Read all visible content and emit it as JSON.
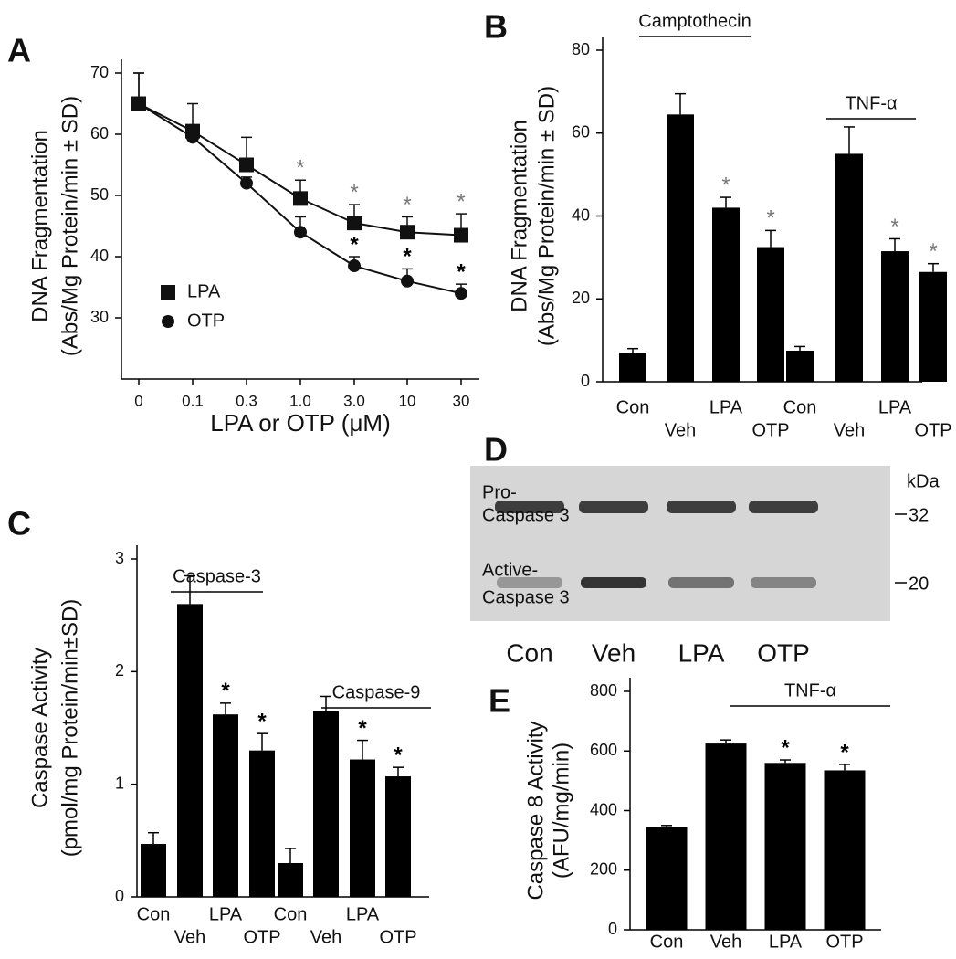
{
  "chart_data": [
    {
      "type": "line",
      "label": "A",
      "x_label": "LPA or OTP (μM)",
      "y_label": [
        "DNA Fragmentation",
        "(Abs/Mg Protein/min ± SD)"
      ],
      "categories": [
        "0",
        "0.1",
        "0.3",
        "1.0",
        "3.0",
        "10",
        "30"
      ],
      "ylim": [
        20,
        70
      ],
      "yticks": [
        30,
        40,
        50,
        60,
        70
      ],
      "series": [
        {
          "name": "LPA",
          "marker": "square",
          "color": "#111111",
          "values": [
            65,
            60.5,
            55,
            49.5,
            45.5,
            44,
            43.5
          ],
          "errors": [
            5,
            4.5,
            4.5,
            3,
            3,
            2.5,
            3.5
          ],
          "significance": [
            null,
            null,
            null,
            "*",
            "*",
            "*",
            "*"
          ]
        },
        {
          "name": "OTP",
          "marker": "circle",
          "color": "#111111",
          "values": [
            65,
            59.5,
            52,
            44,
            38.5,
            36,
            34
          ],
          "errors": [
            5,
            1,
            1,
            2.5,
            1.5,
            2,
            1.5
          ],
          "significance": [
            null,
            null,
            null,
            null,
            "*",
            "*",
            "*"
          ]
        }
      ]
    },
    {
      "type": "bar",
      "label": "B",
      "y_label": [
        "DNA Fragmentation",
        "(Abs/Mg Protein/min ± SD)"
      ],
      "categories": [
        "Con",
        "Veh",
        "LPA",
        "OTP",
        "Con",
        "Veh",
        "LPA",
        "OTP"
      ],
      "groups": [
        "Camptothecin",
        "TNF-α"
      ],
      "ylim": [
        0,
        80
      ],
      "yticks": [
        0,
        20,
        40,
        60,
        80
      ],
      "color": "#000000",
      "values": [
        7,
        64.5,
        42,
        32.5,
        7.5,
        55,
        31.5,
        26.5
      ],
      "errors": [
        1,
        5,
        2.5,
        4,
        1,
        6.5,
        3,
        2
      ],
      "significance": [
        null,
        null,
        "*",
        "*",
        null,
        null,
        "*",
        "*"
      ]
    },
    {
      "type": "bar",
      "label": "C",
      "y_label": [
        "Caspase Activity",
        "(pmol/mg Protein/min±SD)"
      ],
      "categories": [
        "Con",
        "Veh",
        "LPA",
        "OTP",
        "Con",
        "Veh",
        "LPA",
        "OTP"
      ],
      "groups": [
        "Caspase-3",
        "Caspase-9"
      ],
      "ylim": [
        0,
        3
      ],
      "yticks": [
        0,
        1,
        2,
        3
      ],
      "color": "#000000",
      "values": [
        0.47,
        2.6,
        1.62,
        1.3,
        0.3,
        1.65,
        1.22,
        1.07
      ],
      "errors": [
        0.1,
        0.25,
        0.1,
        0.15,
        0.13,
        0.13,
        0.17,
        0.08
      ],
      "significance": [
        null,
        null,
        "*",
        "*",
        null,
        null,
        "*",
        "*"
      ]
    },
    {
      "type": "bar",
      "label": "E",
      "y_label": [
        "Caspase 8 Activity",
        "(AFU/mg/min)"
      ],
      "categories": [
        "Con",
        "Veh",
        "LPA",
        "OTP"
      ],
      "groups": [
        "TNF-α"
      ],
      "ylim": [
        0,
        800
      ],
      "yticks": [
        0,
        200,
        400,
        600,
        800
      ],
      "color": "#000000",
      "values": [
        345,
        625,
        560,
        535
      ],
      "errors": [
        5,
        12,
        10,
        20
      ],
      "significance": [
        null,
        null,
        "*",
        "*"
      ]
    }
  ],
  "blot": {
    "label": "D",
    "rows": [
      [
        "Pro-",
        "Caspase 3"
      ],
      [
        "Active-",
        "Caspase 3"
      ]
    ],
    "unit": "kDa",
    "markers": [
      "32",
      "20"
    ],
    "lanes": [
      "Con",
      "Veh",
      "LPA",
      "OTP"
    ]
  }
}
